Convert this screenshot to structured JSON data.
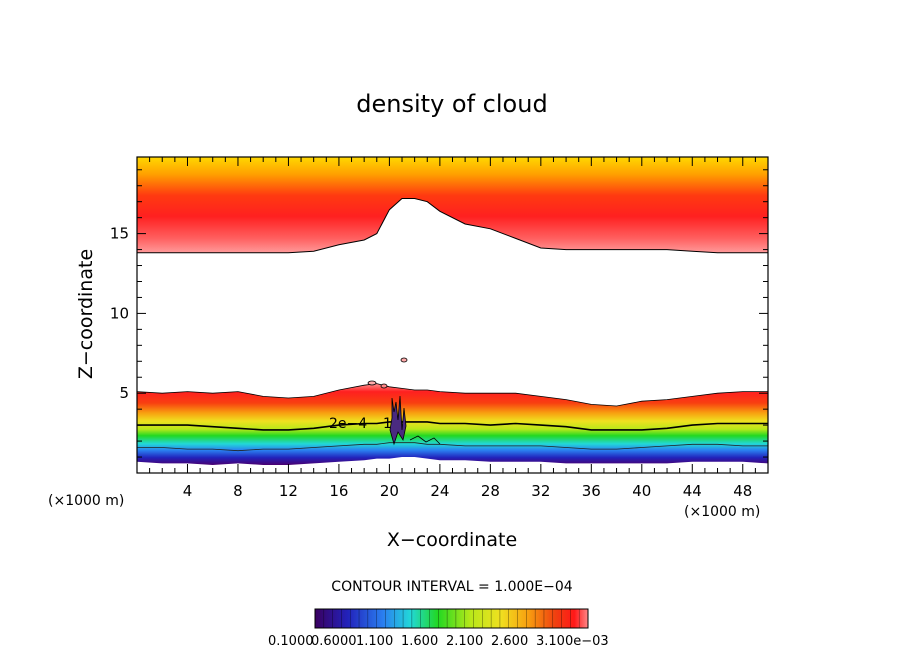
{
  "chart_data": {
    "type": "heatmap",
    "title": "density of cloud",
    "xlabel": "X−coordinate",
    "ylabel": "Z−coordinate",
    "x_unit": "(×1000 m)",
    "xlim": [
      0,
      50
    ],
    "ylim": [
      0,
      19.8
    ],
    "x_ticks": [
      4,
      8,
      12,
      16,
      20,
      24,
      28,
      32,
      36,
      40,
      44,
      48
    ],
    "y_ticks": [
      5,
      10,
      15
    ],
    "contour_label": "2e−4",
    "contour_label_extra": "1",
    "contour_interval": "CONTOUR INTERVAL = 1.000E−04",
    "colorbar_ticks": [
      "0.1000",
      "0.6000",
      "1.100",
      "1.600",
      "2.100",
      "2.600",
      "3.100e−03"
    ],
    "colormap": [
      "#3a0060",
      "#2222bb",
      "#2a7ff0",
      "#22d8d8",
      "#22d822",
      "#b8e81a",
      "#f0e020",
      "#f8a010",
      "#f04010",
      "#ff1818",
      "#ff8888"
    ],
    "x": [
      0,
      2,
      4,
      6,
      8,
      10,
      12,
      14,
      16,
      18,
      19,
      20,
      21,
      22,
      23,
      24,
      26,
      28,
      30,
      32,
      34,
      36,
      38,
      40,
      42,
      44,
      46,
      48,
      50
    ],
    "series": [
      {
        "values": [
          13.8,
          13.8,
          13.8,
          13.8,
          13.8,
          13.8,
          13.8,
          13.9,
          14.3,
          14.6,
          15.0,
          16.5,
          17.2,
          17.2,
          17.0,
          16.4,
          15.6,
          15.3,
          14.7,
          14.1,
          14.0,
          14.0,
          14.0,
          14.0,
          14.0,
          13.9,
          13.8,
          13.8,
          13.8
        ]
      },
      {
        "values": [
          5.1,
          5.0,
          5.1,
          5.0,
          5.1,
          4.8,
          4.7,
          4.8,
          5.2,
          5.5,
          5.6,
          5.4,
          5.3,
          5.2,
          5.2,
          5.1,
          5.0,
          5.0,
          5.0,
          4.8,
          4.6,
          4.3,
          4.2,
          4.5,
          4.6,
          4.8,
          5.0,
          5.1,
          5.1
        ]
      },
      {
        "values": [
          3.0,
          3.0,
          3.0,
          2.9,
          2.8,
          2.7,
          2.7,
          2.8,
          3.0,
          3.1,
          3.1,
          3.2,
          3.2,
          3.2,
          3.2,
          3.1,
          3.1,
          3.0,
          3.1,
          3.0,
          2.9,
          2.7,
          2.7,
          2.7,
          2.8,
          3.0,
          3.1,
          3.1,
          3.1
        ]
      },
      {
        "values": [
          1.6,
          1.6,
          1.5,
          1.5,
          1.4,
          1.5,
          1.5,
          1.6,
          1.7,
          1.8,
          1.8,
          1.9,
          1.9,
          1.9,
          1.8,
          1.8,
          1.7,
          1.7,
          1.7,
          1.7,
          1.6,
          1.5,
          1.5,
          1.6,
          1.7,
          1.8,
          1.8,
          1.7,
          1.7
        ]
      },
      {
        "values": [
          0.7,
          0.6,
          0.6,
          0.5,
          0.6,
          0.5,
          0.5,
          0.6,
          0.7,
          0.8,
          0.9,
          0.9,
          1.0,
          1.0,
          0.9,
          0.8,
          0.8,
          0.7,
          0.7,
          0.7,
          0.6,
          0.6,
          0.6,
          0.6,
          0.6,
          0.7,
          0.7,
          0.7,
          0.6
        ]
      }
    ]
  }
}
